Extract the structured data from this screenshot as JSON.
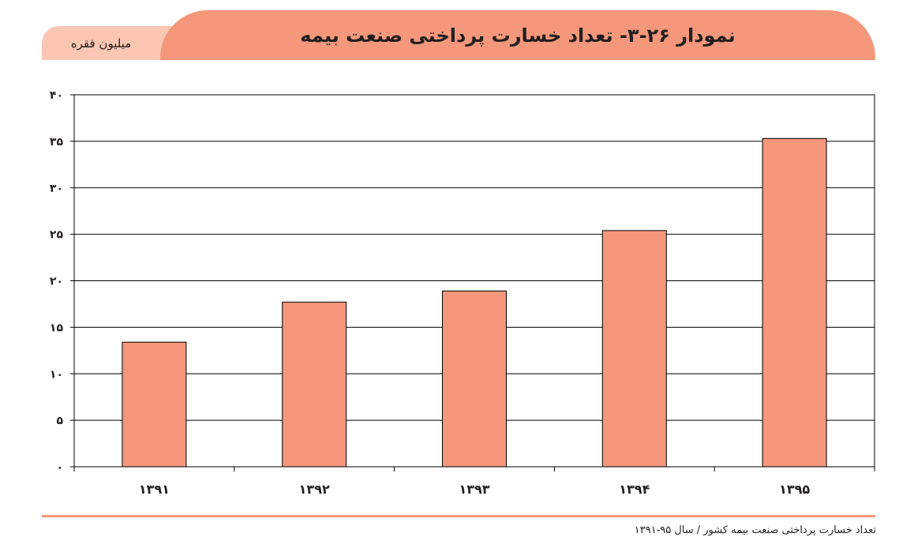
{
  "header": {
    "title": "نمودار ۲۶-۳- تعداد خسارت پرداختی صنعت بیمه",
    "unit": "میلیون فقره"
  },
  "footer": {
    "source": "تعداد خسارت پرداختی صنعت بیمه کشور / سال ۹۵-۱۳۹۱"
  },
  "colors": {
    "accent": "#f4977a",
    "accent_light": "#fbc6b2",
    "bar_fill": "#f4977a",
    "text": "#231f20"
  },
  "chart_data": {
    "type": "bar",
    "categories": [
      "۱۳۹۱",
      "۱۳۹۲",
      "۱۳۹۳",
      "۱۳۹۴",
      "۱۳۹۵"
    ],
    "values": [
      13.4,
      17.7,
      18.9,
      25.4,
      35.3
    ],
    "ylim": [
      0,
      40
    ],
    "yticks": [
      0,
      5,
      10,
      15,
      20,
      25,
      30,
      35,
      40
    ],
    "ytick_labels": [
      "۰",
      "۵",
      "۱۰",
      "۱۵",
      "۲۰",
      "۲۵",
      "۳۰",
      "۳۵",
      "۴۰"
    ],
    "grid": true,
    "legend": "none"
  }
}
